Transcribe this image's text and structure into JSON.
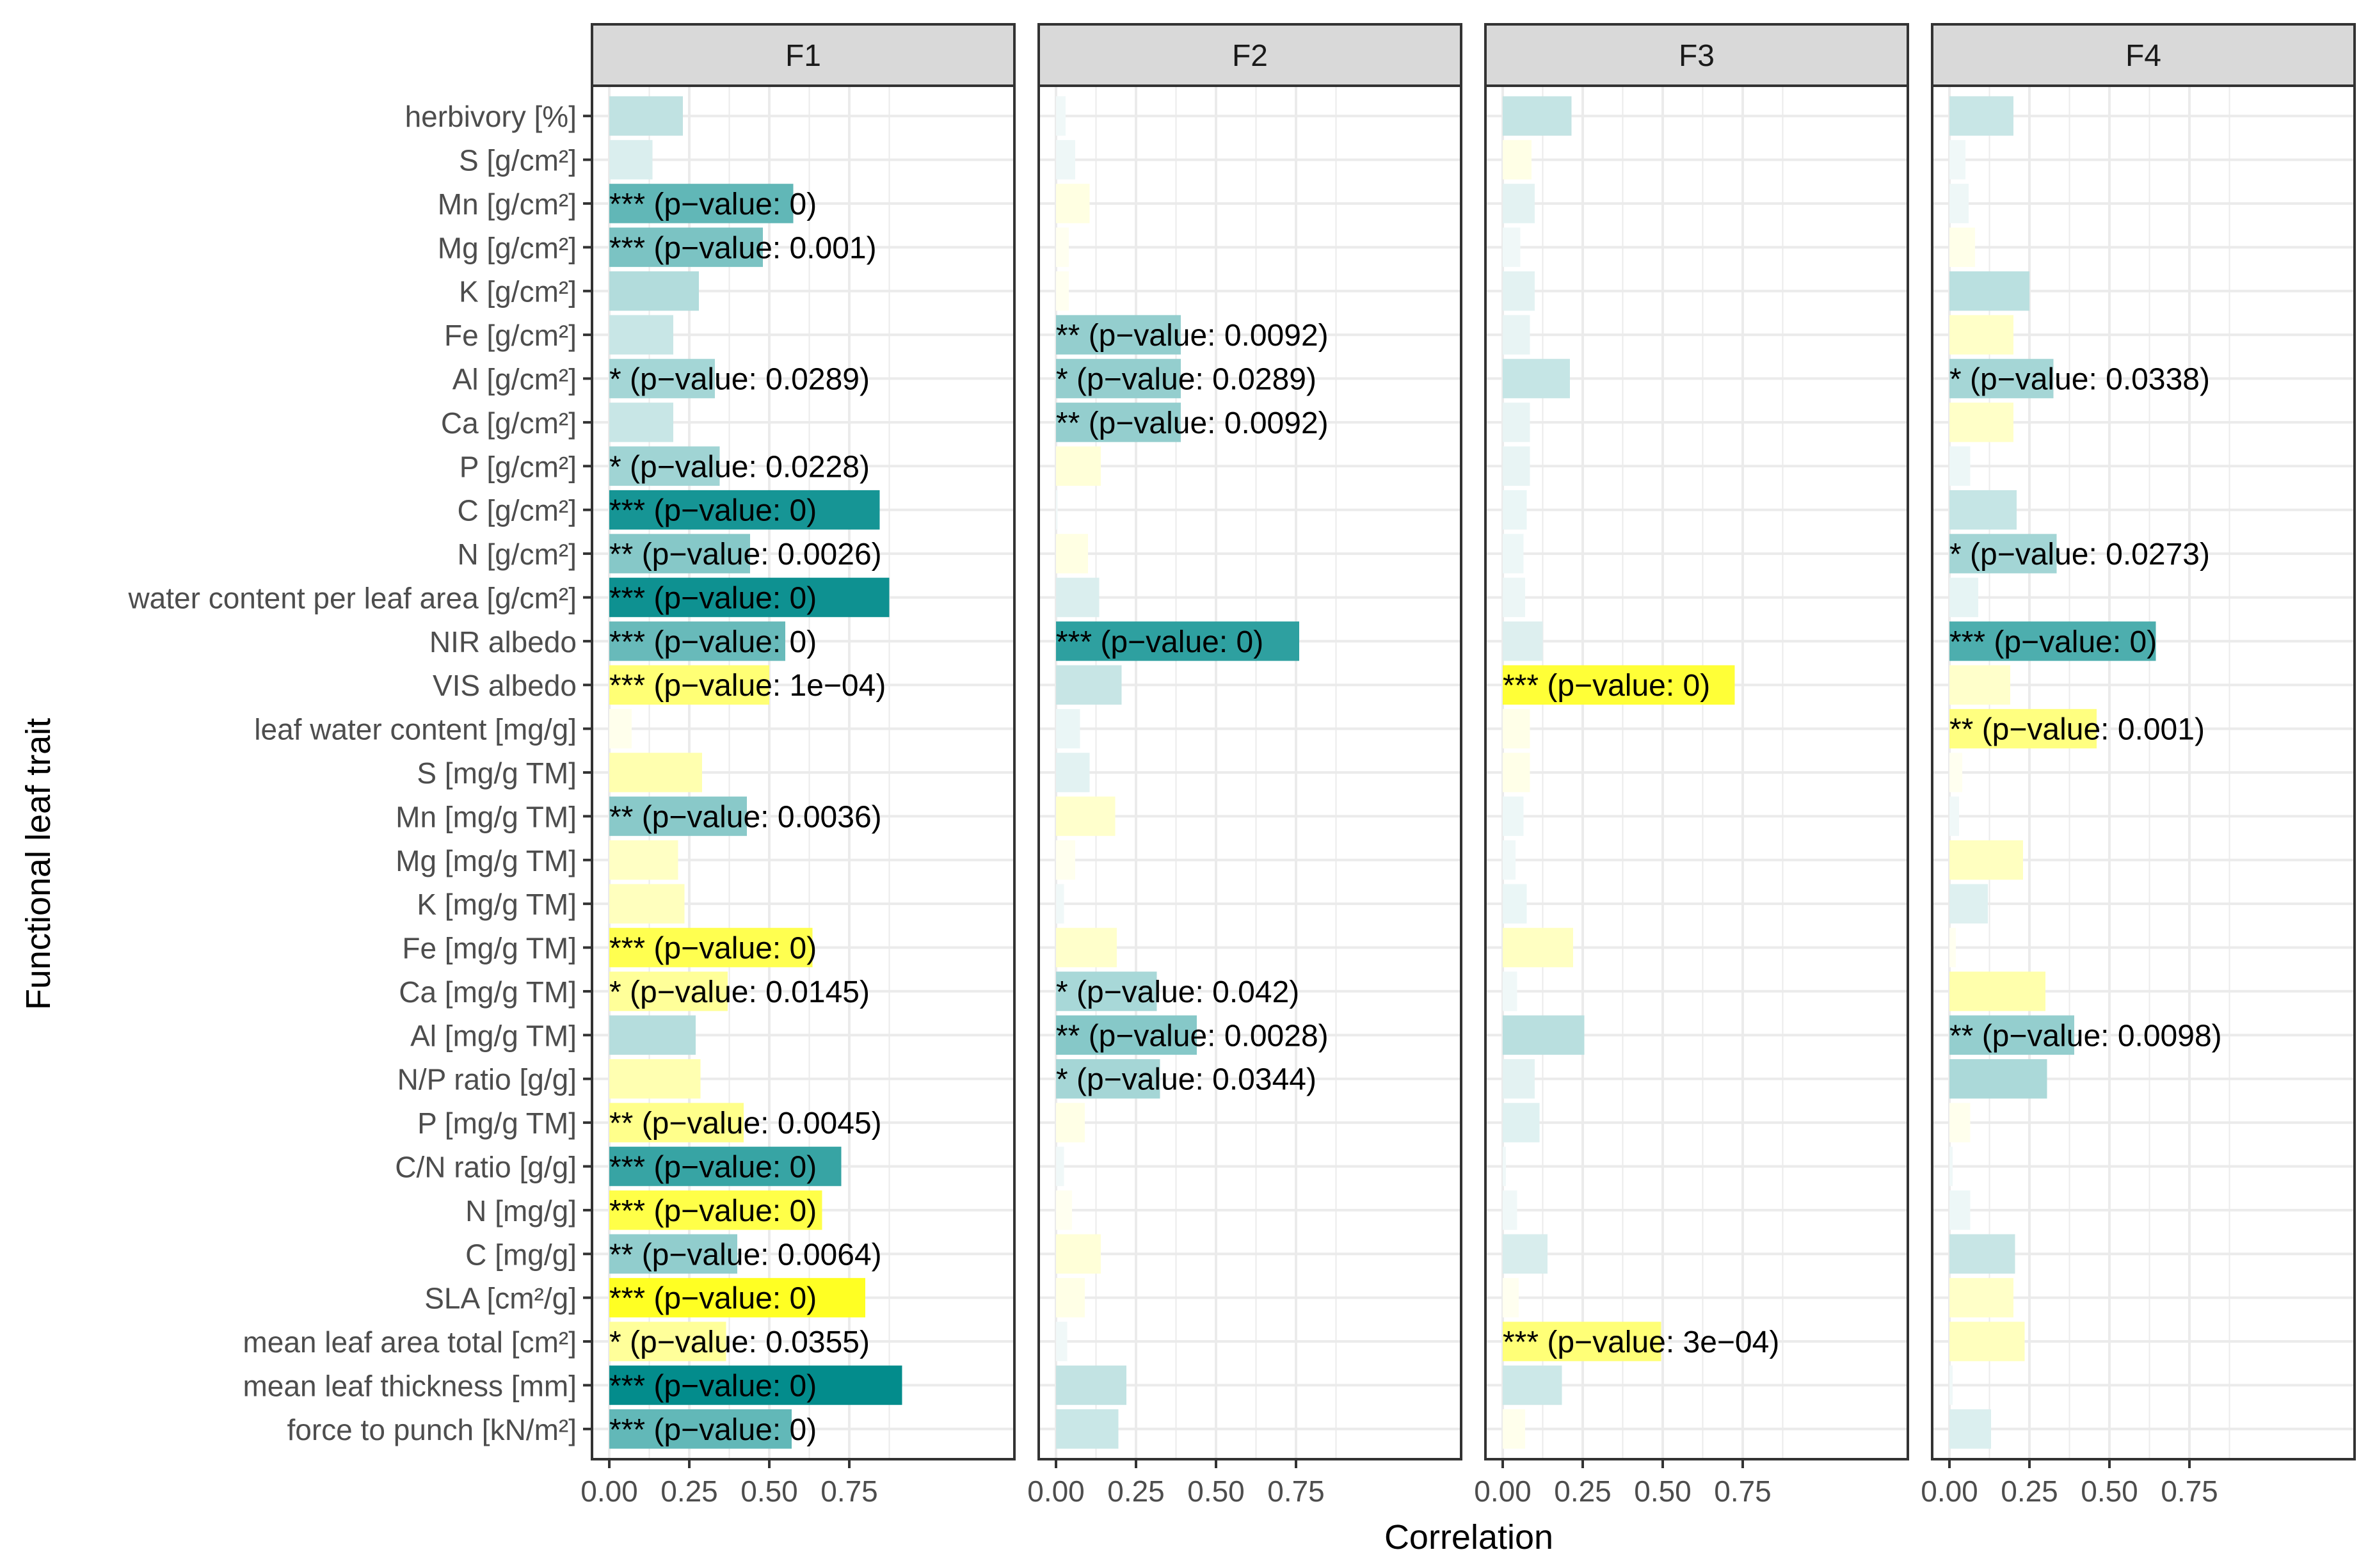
{
  "chart_data": {
    "type": "bar",
    "orientation": "horizontal",
    "xlabel": "Correlation",
    "ylabel": "Functional leaf trait",
    "xlim": [
      0,
      0.95
    ],
    "xticks": [
      0,
      0.25,
      0.5,
      0.75
    ],
    "xtick_labels": [
      "0.00",
      "0.25",
      "0.50",
      "0.75"
    ],
    "grid": true,
    "colors": {
      "positive_sign": "#008B8B",
      "negative_sign": "#FFFF00",
      "panel_border": "#333333",
      "strip_fill": "#D9D9D9",
      "grid": "#EBEBEB"
    },
    "traits": [
      "herbivory [%]",
      "S [g/cm²]",
      "Mn  [g/cm²]",
      "Mg [g/cm²]",
      "K [g/cm²]",
      "Fe [g/cm²]",
      "Al [g/cm²]",
      "Ca [g/cm²]",
      "P  [g/cm²]",
      "C  [g/cm²]",
      "N [g/cm²]",
      "water content per leaf area [g/cm²]",
      "NIR albedo",
      "VIS albedo",
      "leaf water content [mg/g]",
      "S [mg/g TM]",
      "Mn [mg/g TM]",
      "Mg [mg/g TM]",
      "K [mg/g TM]",
      "Fe [mg/g TM]",
      "Ca [mg/g TM]",
      "Al [mg/g TM]",
      "N/P ratio [g/g]",
      "P [mg/g TM]",
      "C/N ratio [g/g]",
      "N [mg/g]",
      "C [mg/g]",
      "SLA [cm²/g]",
      "mean leaf area total [cm²]",
      "mean leaf thickness [mm]",
      "force to punch [kN/m²]"
    ],
    "panels": [
      {
        "name": "F1",
        "bars": [
          {
            "value": 0.23,
            "color": "teal",
            "label": ""
          },
          {
            "value": 0.135,
            "color": "teal",
            "label": ""
          },
          {
            "value": 0.575,
            "color": "teal",
            "label": "*** (p−value: 0)"
          },
          {
            "value": 0.48,
            "color": "teal",
            "label": "*** (p−value: 0.001)"
          },
          {
            "value": 0.28,
            "color": "teal",
            "label": ""
          },
          {
            "value": 0.2,
            "color": "teal",
            "label": ""
          },
          {
            "value": 0.33,
            "color": "teal",
            "label": "* (p−value: 0.0289)"
          },
          {
            "value": 0.2,
            "color": "teal",
            "label": ""
          },
          {
            "value": 0.345,
            "color": "teal",
            "label": "* (p−value: 0.0228)"
          },
          {
            "value": 0.845,
            "color": "teal",
            "label": "*** (p−value: 0)"
          },
          {
            "value": 0.44,
            "color": "teal",
            "label": "** (p−value: 0.0026)"
          },
          {
            "value": 0.875,
            "color": "teal",
            "label": "*** (p−value: 0)"
          },
          {
            "value": 0.55,
            "color": "teal",
            "label": "*** (p−value: 0)"
          },
          {
            "value": 0.5,
            "color": "yellow",
            "label": "*** (p−value: 1e−04)"
          },
          {
            "value": 0.07,
            "color": "yellow",
            "label": ""
          },
          {
            "value": 0.29,
            "color": "yellow",
            "label": ""
          },
          {
            "value": 0.43,
            "color": "teal",
            "label": "** (p−value: 0.0036)"
          },
          {
            "value": 0.215,
            "color": "yellow",
            "label": ""
          },
          {
            "value": 0.235,
            "color": "yellow",
            "label": ""
          },
          {
            "value": 0.635,
            "color": "yellow",
            "label": "*** (p−value: 0)"
          },
          {
            "value": 0.37,
            "color": "yellow",
            "label": "* (p−value: 0.0145)"
          },
          {
            "value": 0.27,
            "color": "teal",
            "label": ""
          },
          {
            "value": 0.285,
            "color": "yellow",
            "label": ""
          },
          {
            "value": 0.42,
            "color": "yellow",
            "label": "** (p−value: 0.0045)"
          },
          {
            "value": 0.725,
            "color": "teal",
            "label": "*** (p−value: 0)"
          },
          {
            "value": 0.665,
            "color": "yellow",
            "label": "*** (p−value: 0)"
          },
          {
            "value": 0.4,
            "color": "teal",
            "label": "** (p−value: 0.0064)"
          },
          {
            "value": 0.8,
            "color": "yellow",
            "label": "*** (p−value: 0)"
          },
          {
            "value": 0.365,
            "color": "yellow",
            "label": "* (p−value: 0.0355)"
          },
          {
            "value": 0.915,
            "color": "teal",
            "label": "*** (p−value: 0)"
          },
          {
            "value": 0.57,
            "color": "teal",
            "label": "*** (p−value: 0)"
          }
        ]
      },
      {
        "name": "F2",
        "bars": [
          {
            "value": 0.03,
            "color": "teal",
            "label": ""
          },
          {
            "value": 0.06,
            "color": "teal",
            "label": ""
          },
          {
            "value": 0.105,
            "color": "yellow",
            "label": ""
          },
          {
            "value": 0.04,
            "color": "yellow",
            "label": ""
          },
          {
            "value": 0.04,
            "color": "yellow",
            "label": ""
          },
          {
            "value": 0.39,
            "color": "teal",
            "label": "** (p−value: 0.0092)"
          },
          {
            "value": 0.39,
            "color": "teal",
            "label": "* (p−value: 0.0289)"
          },
          {
            "value": 0.39,
            "color": "teal",
            "label": "** (p−value: 0.0092)"
          },
          {
            "value": 0.14,
            "color": "yellow",
            "label": ""
          },
          {
            "value": 0.005,
            "color": "teal",
            "label": ""
          },
          {
            "value": 0.1,
            "color": "yellow",
            "label": ""
          },
          {
            "value": 0.135,
            "color": "teal",
            "label": ""
          },
          {
            "value": 0.76,
            "color": "teal",
            "label": "*** (p−value: 0)"
          },
          {
            "value": 0.205,
            "color": "teal",
            "label": ""
          },
          {
            "value": 0.075,
            "color": "teal",
            "label": ""
          },
          {
            "value": 0.105,
            "color": "teal",
            "label": ""
          },
          {
            "value": 0.185,
            "color": "yellow",
            "label": ""
          },
          {
            "value": 0.06,
            "color": "yellow",
            "label": ""
          },
          {
            "value": 0.025,
            "color": "teal",
            "label": ""
          },
          {
            "value": 0.19,
            "color": "yellow",
            "label": ""
          },
          {
            "value": 0.315,
            "color": "teal",
            "label": "* (p−value: 0.042)"
          },
          {
            "value": 0.44,
            "color": "teal",
            "label": "** (p−value: 0.0028)"
          },
          {
            "value": 0.325,
            "color": "teal",
            "label": "* (p−value: 0.0344)"
          },
          {
            "value": 0.09,
            "color": "yellow",
            "label": ""
          },
          {
            "value": 0.025,
            "color": "teal",
            "label": ""
          },
          {
            "value": 0.05,
            "color": "yellow",
            "label": ""
          },
          {
            "value": 0.14,
            "color": "yellow",
            "label": ""
          },
          {
            "value": 0.09,
            "color": "yellow",
            "label": ""
          },
          {
            "value": 0.035,
            "color": "teal",
            "label": ""
          },
          {
            "value": 0.22,
            "color": "teal",
            "label": ""
          },
          {
            "value": 0.195,
            "color": "teal",
            "label": ""
          }
        ]
      },
      {
        "name": "F3",
        "bars": [
          {
            "value": 0.215,
            "color": "teal",
            "label": ""
          },
          {
            "value": 0.09,
            "color": "yellow",
            "label": ""
          },
          {
            "value": 0.1,
            "color": "teal",
            "label": ""
          },
          {
            "value": 0.055,
            "color": "teal",
            "label": ""
          },
          {
            "value": 0.1,
            "color": "teal",
            "label": ""
          },
          {
            "value": 0.085,
            "color": "teal",
            "label": ""
          },
          {
            "value": 0.21,
            "color": "teal",
            "label": ""
          },
          {
            "value": 0.085,
            "color": "teal",
            "label": ""
          },
          {
            "value": 0.085,
            "color": "teal",
            "label": ""
          },
          {
            "value": 0.075,
            "color": "teal",
            "label": ""
          },
          {
            "value": 0.065,
            "color": "teal",
            "label": ""
          },
          {
            "value": 0.07,
            "color": "teal",
            "label": ""
          },
          {
            "value": 0.125,
            "color": "teal",
            "label": ""
          },
          {
            "value": 0.725,
            "color": "yellow",
            "label": "*** (p−value: 0)"
          },
          {
            "value": 0.085,
            "color": "yellow",
            "label": ""
          },
          {
            "value": 0.085,
            "color": "yellow",
            "label": ""
          },
          {
            "value": 0.065,
            "color": "teal",
            "label": ""
          },
          {
            "value": 0.04,
            "color": "teal",
            "label": ""
          },
          {
            "value": 0.075,
            "color": "teal",
            "label": ""
          },
          {
            "value": 0.22,
            "color": "yellow",
            "label": ""
          },
          {
            "value": 0.045,
            "color": "teal",
            "label": ""
          },
          {
            "value": 0.255,
            "color": "teal",
            "label": ""
          },
          {
            "value": 0.1,
            "color": "teal",
            "label": ""
          },
          {
            "value": 0.115,
            "color": "teal",
            "label": ""
          },
          {
            "value": 0.01,
            "color": "teal",
            "label": ""
          },
          {
            "value": 0.045,
            "color": "teal",
            "label": ""
          },
          {
            "value": 0.14,
            "color": "teal",
            "label": ""
          },
          {
            "value": 0.05,
            "color": "yellow",
            "label": ""
          },
          {
            "value": 0.495,
            "color": "yellow",
            "label": "*** (p−value: 3e−04)"
          },
          {
            "value": 0.185,
            "color": "teal",
            "label": ""
          },
          {
            "value": 0.07,
            "color": "yellow",
            "label": ""
          }
        ]
      },
      {
        "name": "F4",
        "bars": [
          {
            "value": 0.2,
            "color": "teal",
            "label": ""
          },
          {
            "value": 0.05,
            "color": "teal",
            "label": ""
          },
          {
            "value": 0.06,
            "color": "teal",
            "label": ""
          },
          {
            "value": 0.08,
            "color": "yellow",
            "label": ""
          },
          {
            "value": 0.25,
            "color": "teal",
            "label": ""
          },
          {
            "value": 0.2,
            "color": "yellow",
            "label": ""
          },
          {
            "value": 0.325,
            "color": "teal",
            "label": "* (p−value: 0.0338)"
          },
          {
            "value": 0.2,
            "color": "yellow",
            "label": ""
          },
          {
            "value": 0.065,
            "color": "teal",
            "label": ""
          },
          {
            "value": 0.21,
            "color": "teal",
            "label": ""
          },
          {
            "value": 0.335,
            "color": "teal",
            "label": "* (p−value: 0.0273)"
          },
          {
            "value": 0.09,
            "color": "teal",
            "label": ""
          },
          {
            "value": 0.645,
            "color": "teal",
            "label": "*** (p−value: 0)"
          },
          {
            "value": 0.19,
            "color": "yellow",
            "label": ""
          },
          {
            "value": 0.46,
            "color": "yellow",
            "label": "** (p−value: 0.001)"
          },
          {
            "value": 0.04,
            "color": "yellow",
            "label": ""
          },
          {
            "value": 0.03,
            "color": "teal",
            "label": ""
          },
          {
            "value": 0.23,
            "color": "yellow",
            "label": ""
          },
          {
            "value": 0.12,
            "color": "teal",
            "label": ""
          },
          {
            "value": 0.02,
            "color": "yellow",
            "label": ""
          },
          {
            "value": 0.3,
            "color": "yellow",
            "label": ""
          },
          {
            "value": 0.39,
            "color": "teal",
            "label": "** (p−value: 0.0098)"
          },
          {
            "value": 0.305,
            "color": "teal",
            "label": ""
          },
          {
            "value": 0.065,
            "color": "yellow",
            "label": ""
          },
          {
            "value": 0.01,
            "color": "teal",
            "label": ""
          },
          {
            "value": 0.065,
            "color": "teal",
            "label": ""
          },
          {
            "value": 0.205,
            "color": "teal",
            "label": ""
          },
          {
            "value": 0.2,
            "color": "yellow",
            "label": ""
          },
          {
            "value": 0.235,
            "color": "yellow",
            "label": ""
          },
          {
            "value": 0.01,
            "color": "teal",
            "label": ""
          },
          {
            "value": 0.13,
            "color": "teal",
            "label": ""
          }
        ]
      }
    ]
  }
}
